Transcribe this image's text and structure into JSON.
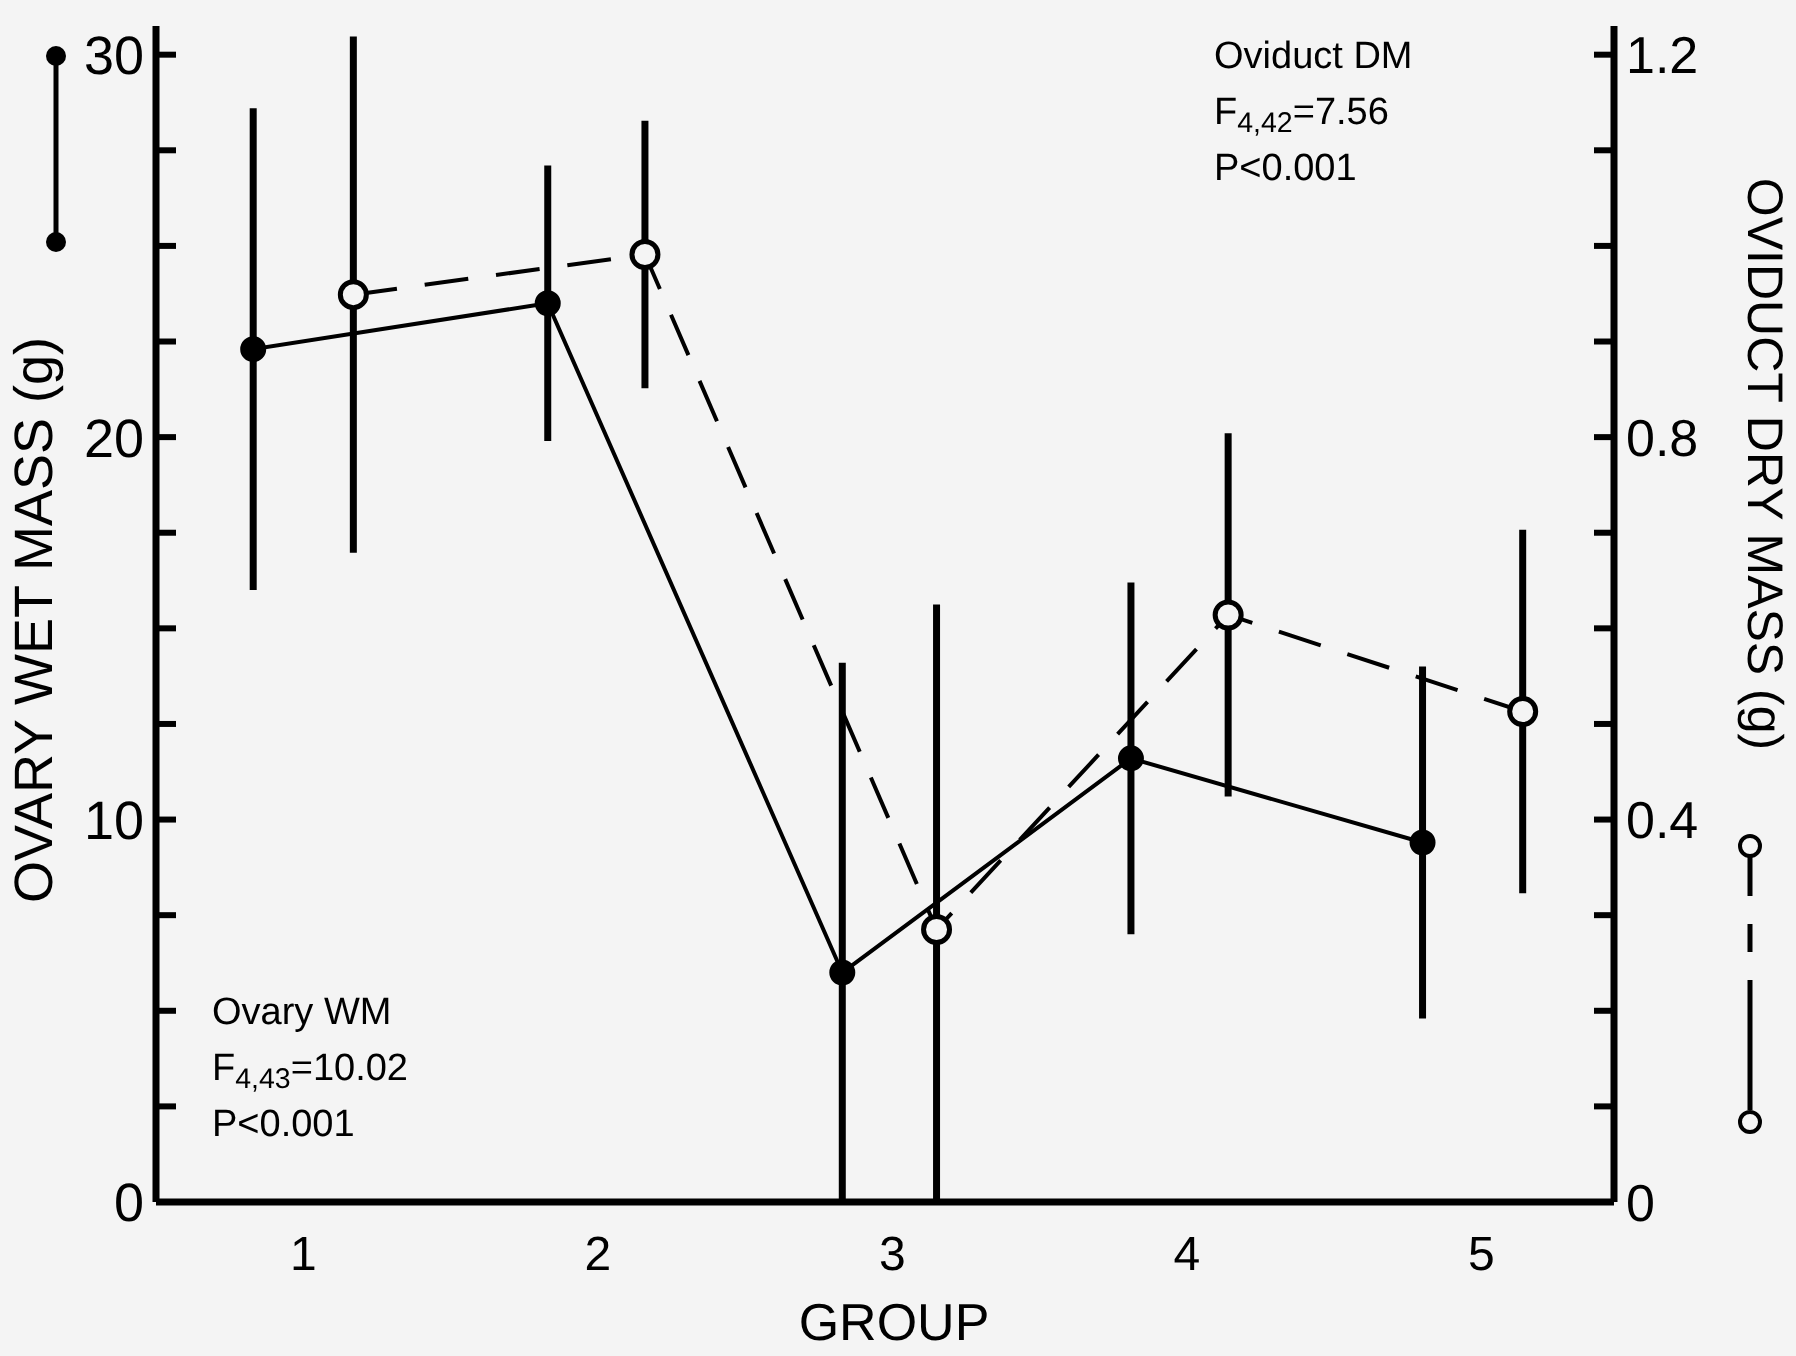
{
  "chart_data": {
    "type": "line",
    "xlabel": "GROUP",
    "ylabel": "OVARY WET MASS (g)",
    "y2label": "OVIDUCT DRY MASS (g)",
    "xlim": [
      0.5,
      5.45
    ],
    "xticks": [
      1,
      2,
      3,
      4,
      5
    ],
    "ylim": [
      0,
      30.75
    ],
    "yticks": [
      0,
      {
        "value": 2.5,
        "label": null
      },
      {
        "value": 5,
        "label": null
      },
      {
        "value": 7.5,
        "label": null
      },
      10,
      {
        "value": 12.5,
        "label": null
      },
      {
        "value": 15,
        "label": null
      },
      {
        "value": 17.5,
        "label": null
      },
      20,
      {
        "value": 22.5,
        "label": null
      },
      {
        "value": 25,
        "label": null
      },
      {
        "value": 27.5,
        "label": null
      },
      30
    ],
    "y2lim": [
      0,
      1.23
    ],
    "y2ticks": [
      0,
      {
        "value": 0.1,
        "label": null
      },
      {
        "value": 0.2,
        "label": null
      },
      {
        "value": 0.3,
        "label": null
      },
      0.4,
      {
        "value": 0.5,
        "label": null
      },
      {
        "value": 0.6,
        "label": null
      },
      {
        "value": 0.7,
        "label": null
      },
      0.8,
      {
        "value": 0.9,
        "label": null
      },
      {
        "value": 1.0,
        "label": null
      },
      {
        "value": 1.1,
        "label": null
      },
      1.2
    ],
    "grid": false,
    "series": [
      {
        "color": "#000000",
        "marker": "circle",
        "line_style": "solid",
        "x": [
          0.83,
          1.83,
          2.83,
          3.81,
          4.8
        ],
        "values": [
          22.3,
          23.5,
          6.0,
          11.6,
          9.4
        ],
        "errors": [
          6.3,
          3.6,
          [
            0,
            14.1
          ],
          4.6,
          4.6
        ]
      },
      {
        "color": "#000000",
        "marker": "circle",
        "line_style": "dashed",
        "axis": "y2",
        "x": [
          1.17,
          2.16,
          3.15,
          4.14,
          5.14
        ],
        "values": [
          0.949,
          0.991,
          0.285,
          0.614,
          0.513
        ],
        "errors": [
          0.27,
          0.14,
          [
            0,
            0.625
          ],
          0.19,
          0.19
        ]
      }
    ],
    "annotations": [
      "Oviduct DM",
      "F$_{4,42}$=7.56",
      "P<0.001",
      "Ovary WM",
      "F$_{4,43}$=10.02",
      "P<0.001"
    ]
  }
}
